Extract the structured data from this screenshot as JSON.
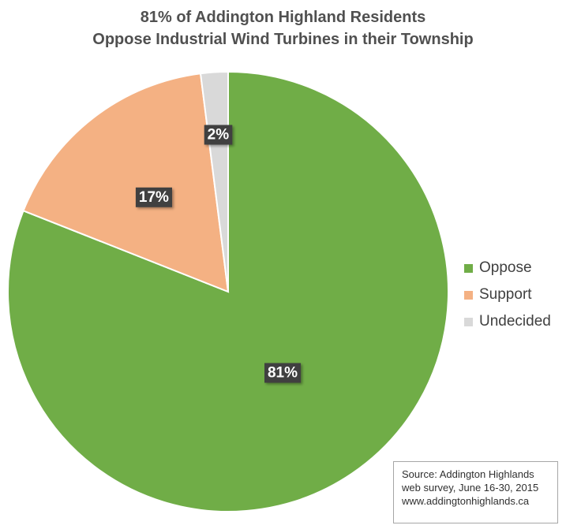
{
  "chart_data": {
    "type": "pie",
    "title": [
      "81% of Addington Highland Residents",
      "Oppose Industrial Wind Turbines in their Township"
    ],
    "slices": [
      {
        "label": "Oppose",
        "value": 81,
        "data_label": "81%",
        "color": "#70ad47"
      },
      {
        "label": "Support",
        "value": 17,
        "data_label": "17%",
        "color": "#f4b183"
      },
      {
        "label": "Undecided",
        "value": 2,
        "data_label": "2%",
        "color": "#d9d9d9"
      }
    ],
    "legend_position": "right"
  },
  "source_note": {
    "lines": [
      "Source: Addington Highlands",
      "web survey, June 16-30, 2015",
      "www.addingtonhighlands.ca"
    ]
  }
}
